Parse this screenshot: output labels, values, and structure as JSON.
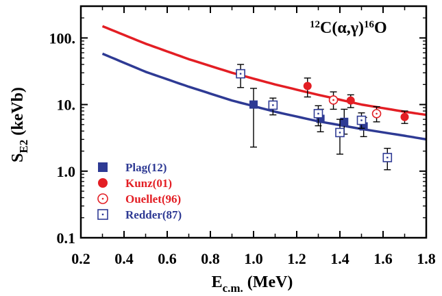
{
  "chart_data": {
    "type": "scatter",
    "annotation": {
      "mass1": "12",
      "elem1": "C",
      "reaction": "(α,γ)",
      "mass2": "16",
      "elem2": "O"
    },
    "xlabel": {
      "main": "E",
      "sub": "c.m.",
      "unit": " (MeV)"
    },
    "ylabel": {
      "main": "S",
      "sub": "E2",
      "unit": " (keVb)"
    },
    "x_range": [
      0.2,
      1.8
    ],
    "y_range": [
      0.1,
      300
    ],
    "y_scale": "log",
    "x_ticks": [
      {
        "value": 0.2,
        "label": "0.2"
      },
      {
        "value": 0.4,
        "label": "0.4"
      },
      {
        "value": 0.6,
        "label": "0.6"
      },
      {
        "value": 0.8,
        "label": "0.8"
      },
      {
        "value": 1.0,
        "label": "1.0"
      },
      {
        "value": 1.2,
        "label": "1.2"
      },
      {
        "value": 1.4,
        "label": "1.4"
      },
      {
        "value": 1.6,
        "label": "1.6"
      },
      {
        "value": 1.8,
        "label": "1.8"
      }
    ],
    "y_ticks": [
      {
        "value": 0.1,
        "label": "0.1"
      },
      {
        "value": 1,
        "label": "1.0"
      },
      {
        "value": 10,
        "label": "10."
      },
      {
        "value": 100,
        "label": "100."
      }
    ],
    "legend_position": "bottom-left",
    "colors": {
      "red": "#e31e24",
      "blue": "#2e3a94"
    },
    "curves": [
      {
        "color": "#e31e24",
        "x": [
          0.3,
          0.5,
          0.7,
          0.9,
          1.1,
          1.3,
          1.5,
          1.7,
          1.8
        ],
        "y": [
          150,
          82,
          48,
          30,
          20,
          14,
          10,
          7.8,
          7.0
        ]
      },
      {
        "color": "#2e3a94",
        "x": [
          0.3,
          0.5,
          0.7,
          0.9,
          1.1,
          1.3,
          1.5,
          1.7,
          1.8
        ],
        "y": [
          58,
          31,
          18.5,
          11.5,
          7.8,
          5.6,
          4.3,
          3.4,
          3.0
        ]
      }
    ],
    "series": [
      {
        "name": "Plag(12)",
        "marker": "filled-square",
        "color": "#2e3a94",
        "points": [
          {
            "x": 1.0,
            "y": 10.0,
            "ylo": 2.3,
            "yhi": 17.5
          },
          {
            "x": 1.31,
            "y": 6.1,
            "ylo": 3.9,
            "yhi": 8.5
          },
          {
            "x": 1.42,
            "y": 5.5,
            "ylo": 3.6,
            "yhi": 8.5
          },
          {
            "x": 1.51,
            "y": 4.7,
            "ylo": 3.3,
            "yhi": 6.4
          }
        ]
      },
      {
        "name": "Kunz(01)",
        "marker": "filled-circle",
        "color": "#e31e24",
        "points": [
          {
            "x": 1.25,
            "y": 19.0,
            "ylo": 13.0,
            "yhi": 25.0
          },
          {
            "x": 1.45,
            "y": 11.5,
            "ylo": 9.0,
            "yhi": 14.0
          },
          {
            "x": 1.7,
            "y": 6.5,
            "ylo": 5.2,
            "yhi": 8.0
          }
        ]
      },
      {
        "name": "Ouellet(96)",
        "marker": "open-circle",
        "color": "#e31e24",
        "points": [
          {
            "x": 1.37,
            "y": 11.7,
            "ylo": 8.5,
            "yhi": 15.5
          },
          {
            "x": 1.57,
            "y": 7.3,
            "ylo": 5.5,
            "yhi": 9.3
          }
        ]
      },
      {
        "name": "Redder(87)",
        "marker": "open-square",
        "color": "#2e3a94",
        "points": [
          {
            "x": 0.94,
            "y": 29.0,
            "ylo": 18.0,
            "yhi": 40.0
          },
          {
            "x": 1.09,
            "y": 9.8,
            "ylo": 7.0,
            "yhi": 12.5
          },
          {
            "x": 1.3,
            "y": 7.3,
            "ylo": 4.8,
            "yhi": 9.6
          },
          {
            "x": 1.4,
            "y": 3.8,
            "ylo": 1.8,
            "yhi": 6.0
          },
          {
            "x": 1.5,
            "y": 5.8,
            "ylo": 4.4,
            "yhi": 7.5
          },
          {
            "x": 1.62,
            "y": 1.6,
            "ylo": 1.05,
            "yhi": 2.2
          }
        ]
      }
    ]
  }
}
